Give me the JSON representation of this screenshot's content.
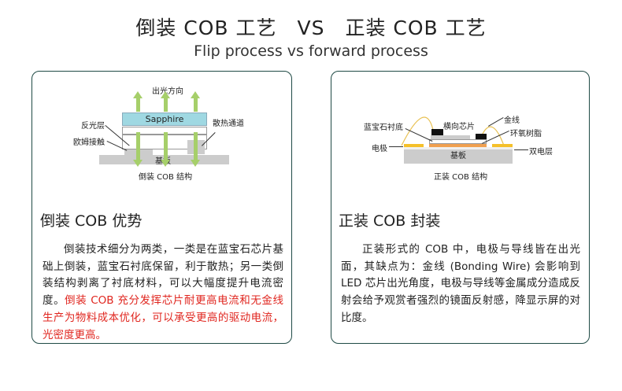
{
  "header": {
    "title": "倒装 COB 工艺　VS　正装 COB 工艺",
    "subtitle": "Flip process vs forward process"
  },
  "left": {
    "diagram": {
      "light_direction": "出光方向",
      "sapphire": "Sapphire",
      "reflective_layer": "反光层",
      "ohmic_contact": "欧姆接触",
      "heat_channel": "散热通道",
      "substrate": "基板",
      "caption": "倒装 COB 结构"
    },
    "heading": "倒装 COB 优势",
    "text_black": "倒装技术细分为两类，一类是在蓝宝石芯片基础上倒装，蓝宝石衬底保留，利于散热；另一类倒装结构剥离了衬底材料，可以大幅度提升电流密度。",
    "text_red": "倒装 COB 充分发挥芯片耐更高电流和无金线生产为物料成本优化，可以承受更高的驱动电流，光密度更高。"
  },
  "right": {
    "diagram": {
      "sapphire_substrate": "蓝宝石衬底",
      "lateral_chip": "横向芯片",
      "gold_wire": "金线",
      "epoxy": "环氧树脂",
      "electrode": "电极",
      "double_layer": "双电层",
      "substrate": "基板",
      "caption": "正装 COB 结构"
    },
    "heading": "正装 COB 封装",
    "text": "正装形式的 COB 中，电极与导线皆在出光面，其缺点为：金线 (Bonding Wire) 会影响到 LED 芯片出光角度，电极与导线等金属成分造成反射会给予观赏者强烈的镜面反射感，降显示屏的对比度。"
  },
  "colors": {
    "border": "#1f4a45",
    "accent_red": "#e0261f",
    "arrow_green": "#a6cf6a",
    "sapphire_blue": "#9fd8e2",
    "electrode_yellow": "#f5c02a",
    "epoxy_orange": "#f0a050"
  }
}
